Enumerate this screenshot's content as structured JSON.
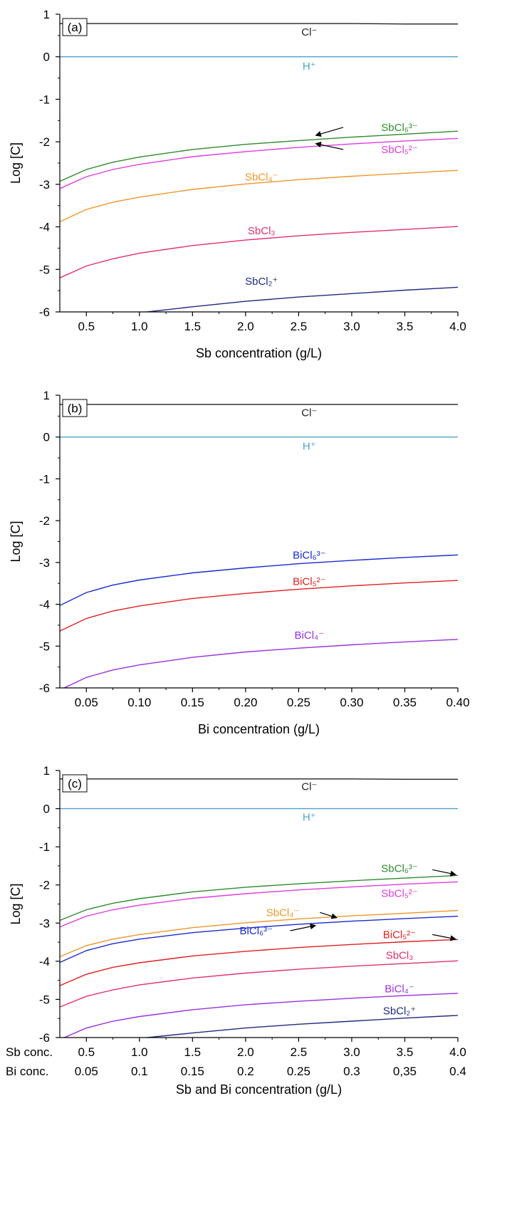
{
  "chart_data": [
    {
      "panel_label": "(a)",
      "type": "line",
      "xlabel": "Sb concentration (g/L)",
      "ylabel": "Log [C]",
      "xlim": [
        0.25,
        4.0
      ],
      "ylim": [
        -6,
        1
      ],
      "xticks": [
        "0.5",
        "1.0",
        "1.5",
        "2.0",
        "2.5",
        "3.0",
        "3.5",
        "4.0"
      ],
      "xtick_values": [
        0.5,
        1.0,
        1.5,
        2.0,
        2.5,
        3.0,
        3.5,
        4.0
      ],
      "yticks": [
        "1",
        "0",
        "-1",
        "-2",
        "-3",
        "-4",
        "-5",
        "-6"
      ],
      "ytick_values": [
        1,
        0,
        -1,
        -2,
        -3,
        -4,
        -5,
        -6
      ],
      "x": [
        0.25,
        0.5,
        0.75,
        1.0,
        1.5,
        2.0,
        2.5,
        3.0,
        3.5,
        4.0
      ],
      "series": [
        {
          "name": "Cl⁻",
          "color": "#222222",
          "values": [
            0.78,
            0.78,
            0.78,
            0.78,
            0.78,
            0.78,
            0.78,
            0.78,
            0.77,
            0.77
          ]
        },
        {
          "name": "H⁺",
          "color": "#4aa3c9",
          "values": [
            0.0,
            0.0,
            0.0,
            0.0,
            0.0,
            0.0,
            0.0,
            0.0,
            0.0,
            0.0
          ]
        },
        {
          "name": "SbCl₆³⁻",
          "color": "#2e8b2e",
          "values": [
            -2.93,
            -2.65,
            -2.48,
            -2.36,
            -2.18,
            -2.06,
            -1.97,
            -1.89,
            -1.82,
            -1.75
          ]
        },
        {
          "name": "SbCl₅²⁻",
          "color": "#e03ce0",
          "values": [
            -3.1,
            -2.82,
            -2.65,
            -2.53,
            -2.35,
            -2.23,
            -2.13,
            -2.05,
            -1.98,
            -1.92
          ]
        },
        {
          "name": "SbCl₄⁻",
          "color": "#f0962a",
          "values": [
            -3.88,
            -3.59,
            -3.42,
            -3.3,
            -3.12,
            -2.99,
            -2.89,
            -2.81,
            -2.74,
            -2.67
          ]
        },
        {
          "name": "SbCl₃",
          "color": "#e0306e",
          "values": [
            -5.2,
            -4.92,
            -4.75,
            -4.62,
            -4.44,
            -4.31,
            -4.21,
            -4.13,
            -4.06,
            -3.99
          ]
        },
        {
          "name": "SbCl₂⁺",
          "color": "#1f2a80",
          "values": [
            -6.5,
            -6.25,
            -6.1,
            -6.02,
            -5.88,
            -5.75,
            -5.65,
            -5.57,
            -5.49,
            -5.42
          ]
        }
      ],
      "labels": [
        {
          "text": "Cl⁻",
          "x": 2.6,
          "y": 0.58,
          "color": "#222222"
        },
        {
          "text": "H⁺",
          "x": 2.6,
          "y": -0.22,
          "color": "#4aa3c9"
        },
        {
          "text": "SbCl₆³⁻",
          "x": 3.45,
          "y": -1.66,
          "color": "#2e8b2e"
        },
        {
          "text": "SbCl₅²⁻",
          "x": 3.45,
          "y": -2.18,
          "color": "#e03ce0"
        },
        {
          "text": "SbCl₄⁻",
          "x": 2.15,
          "y": -2.83,
          "color": "#f0962a"
        },
        {
          "text": "SbCl₃",
          "x": 2.15,
          "y": -4.09,
          "color": "#e0306e"
        },
        {
          "text": "SbCl₂⁺",
          "x": 2.15,
          "y": -5.28,
          "color": "#1f2a80"
        }
      ],
      "arrows": [
        {
          "from": [
            2.92,
            -1.66
          ],
          "to": [
            2.66,
            -1.85
          ]
        },
        {
          "from": [
            2.92,
            -2.18
          ],
          "to": [
            2.66,
            -2.04
          ]
        }
      ]
    },
    {
      "panel_label": "(b)",
      "type": "line",
      "xlabel": "Bi concentration (g/L)",
      "ylabel": "Log [C]",
      "xlim": [
        0.025,
        0.4
      ],
      "ylim": [
        -6,
        1
      ],
      "xticks": [
        "0.05",
        "0.10",
        "0.15",
        "0.20",
        "0.25",
        "0.30",
        "0.35",
        "0.40"
      ],
      "xtick_values": [
        0.05,
        0.1,
        0.15,
        0.2,
        0.25,
        0.3,
        0.35,
        0.4
      ],
      "yticks": [
        "1",
        "0",
        "-1",
        "-2",
        "-3",
        "-4",
        "-5",
        "-6"
      ],
      "ytick_values": [
        1,
        0,
        -1,
        -2,
        -3,
        -4,
        -5,
        -6
      ],
      "x": [
        0.025,
        0.05,
        0.075,
        0.1,
        0.15,
        0.2,
        0.25,
        0.3,
        0.35,
        0.4
      ],
      "series": [
        {
          "name": "Cl⁻",
          "color": "#222222",
          "values": [
            0.78,
            0.78,
            0.78,
            0.78,
            0.78,
            0.78,
            0.78,
            0.78,
            0.78,
            0.78
          ]
        },
        {
          "name": "H⁺",
          "color": "#4aa3c9",
          "values": [
            0.0,
            0.0,
            0.0,
            0.0,
            0.0,
            0.0,
            0.0,
            0.0,
            0.0,
            0.0
          ]
        },
        {
          "name": "BiCl₆³⁻",
          "color": "#1a2ad0",
          "values": [
            -4.03,
            -3.72,
            -3.54,
            -3.42,
            -3.25,
            -3.13,
            -3.03,
            -2.95,
            -2.88,
            -2.82
          ]
        },
        {
          "name": "BiCl₅²⁻",
          "color": "#e02020",
          "values": [
            -4.64,
            -4.34,
            -4.16,
            -4.04,
            -3.86,
            -3.74,
            -3.64,
            -3.56,
            -3.49,
            -3.43
          ]
        },
        {
          "name": "BiCl₄⁻",
          "color": "#9b30e0",
          "values": [
            -6.05,
            -5.75,
            -5.57,
            -5.45,
            -5.27,
            -5.14,
            -5.05,
            -4.97,
            -4.9,
            -4.84
          ]
        }
      ],
      "labels": [
        {
          "text": "Cl⁻",
          "x": 0.26,
          "y": 0.58,
          "color": "#222222"
        },
        {
          "text": "H⁺",
          "x": 0.26,
          "y": -0.22,
          "color": "#4aa3c9"
        },
        {
          "text": "BiCl₆³⁻",
          "x": 0.26,
          "y": -2.82,
          "color": "#1a2ad0"
        },
        {
          "text": "BiCl₅²⁻",
          "x": 0.26,
          "y": -3.45,
          "color": "#e02020"
        },
        {
          "text": "BiCl₄⁻",
          "x": 0.26,
          "y": -4.74,
          "color": "#9b30e0"
        }
      ],
      "arrows": []
    },
    {
      "panel_label": "(c)",
      "type": "line",
      "xlabel": "Sb and Bi concentration (g/L)",
      "ylabel": "Log [C]",
      "xlim": [
        0.25,
        4.0
      ],
      "ylim": [
        -6,
        1
      ],
      "x_row_labels": [
        "Sb conc.",
        "Bi conc."
      ],
      "xticks": [
        "0.5",
        "1.0",
        "1.5",
        "2.0",
        "2.5",
        "3.0",
        "3.5",
        "4.0"
      ],
      "xticks2": [
        "0.05",
        "0.1",
        "0.15",
        "0.2",
        "0.25",
        "0.3",
        "0,35",
        "0.4"
      ],
      "xtick_values": [
        0.5,
        1.0,
        1.5,
        2.0,
        2.5,
        3.0,
        3.5,
        4.0
      ],
      "yticks": [
        "1",
        "0",
        "-1",
        "-2",
        "-3",
        "-4",
        "-5",
        "-6"
      ],
      "ytick_values": [
        1,
        0,
        -1,
        -2,
        -3,
        -4,
        -5,
        -6
      ],
      "x": [
        0.25,
        0.5,
        0.75,
        1.0,
        1.5,
        2.0,
        2.5,
        3.0,
        3.5,
        4.0
      ],
      "series": [
        {
          "name": "Cl⁻",
          "color": "#222222",
          "values": [
            0.78,
            0.78,
            0.78,
            0.78,
            0.78,
            0.78,
            0.78,
            0.78,
            0.77,
            0.77
          ]
        },
        {
          "name": "H⁺",
          "color": "#4aa3c9",
          "values": [
            0.0,
            0.0,
            0.0,
            0.0,
            0.0,
            0.0,
            0.0,
            0.0,
            0.0,
            0.0
          ]
        },
        {
          "name": "SbCl₆³⁻",
          "color": "#2e8b2e",
          "values": [
            -2.93,
            -2.65,
            -2.48,
            -2.36,
            -2.18,
            -2.06,
            -1.97,
            -1.89,
            -1.82,
            -1.75
          ]
        },
        {
          "name": "SbCl₅²⁻",
          "color": "#e03ce0",
          "values": [
            -3.1,
            -2.82,
            -2.65,
            -2.53,
            -2.35,
            -2.23,
            -2.13,
            -2.05,
            -1.98,
            -1.92
          ]
        },
        {
          "name": "SbCl₄⁻",
          "color": "#f0962a",
          "values": [
            -3.88,
            -3.59,
            -3.42,
            -3.3,
            -3.12,
            -2.99,
            -2.89,
            -2.81,
            -2.74,
            -2.67
          ]
        },
        {
          "name": "BiCl₆³⁻",
          "color": "#1a2ad0",
          "values": [
            -4.03,
            -3.72,
            -3.54,
            -3.42,
            -3.25,
            -3.13,
            -3.03,
            -2.95,
            -2.88,
            -2.82
          ]
        },
        {
          "name": "BiCl₅²⁻",
          "color": "#e02020",
          "values": [
            -4.64,
            -4.34,
            -4.16,
            -4.04,
            -3.86,
            -3.74,
            -3.64,
            -3.56,
            -3.49,
            -3.43
          ]
        },
        {
          "name": "SbCl₃",
          "color": "#e0306e",
          "values": [
            -5.2,
            -4.92,
            -4.75,
            -4.62,
            -4.44,
            -4.31,
            -4.21,
            -4.13,
            -4.06,
            -3.99
          ]
        },
        {
          "name": "BiCl₄⁻",
          "color": "#9b30e0",
          "values": [
            -6.05,
            -5.75,
            -5.57,
            -5.45,
            -5.27,
            -5.14,
            -5.05,
            -4.97,
            -4.9,
            -4.84
          ]
        },
        {
          "name": "SbCl₂⁺",
          "color": "#1f2a80",
          "values": [
            -6.5,
            -6.25,
            -6.1,
            -6.02,
            -5.88,
            -5.75,
            -5.65,
            -5.57,
            -5.49,
            -5.42
          ]
        }
      ],
      "labels": [
        {
          "text": "Cl⁻",
          "x": 2.6,
          "y": 0.58,
          "color": "#222222"
        },
        {
          "text": "H⁺",
          "x": 2.6,
          "y": -0.22,
          "color": "#4aa3c9"
        },
        {
          "text": "SbCl₆³⁻",
          "x": 3.45,
          "y": -1.57,
          "color": "#2e8b2e"
        },
        {
          "text": "SbCl₅²⁻",
          "x": 3.45,
          "y": -2.22,
          "color": "#e03ce0"
        },
        {
          "text": "SbCl₄⁻",
          "x": 2.35,
          "y": -2.72,
          "color": "#f0962a"
        },
        {
          "text": "BiCl₆³⁻",
          "x": 2.1,
          "y": -3.2,
          "color": "#1a2ad0"
        },
        {
          "text": "BiCl₅²⁻",
          "x": 3.45,
          "y": -3.3,
          "color": "#e02020"
        },
        {
          "text": "SbCl₃",
          "x": 3.45,
          "y": -3.84,
          "color": "#e0306e"
        },
        {
          "text": "BiCl₄⁻",
          "x": 3.45,
          "y": -4.72,
          "color": "#9b30e0"
        },
        {
          "text": "SbCl₂⁺",
          "x": 3.45,
          "y": -5.3,
          "color": "#1f2a80"
        }
      ],
      "arrows": [
        {
          "from": [
            3.76,
            -1.6
          ],
          "to": [
            3.98,
            -1.73
          ]
        },
        {
          "from": [
            2.7,
            -2.72
          ],
          "to": [
            2.86,
            -2.86
          ]
        },
        {
          "from": [
            2.42,
            -3.2
          ],
          "to": [
            2.66,
            -3.06
          ]
        },
        {
          "from": [
            3.76,
            -3.3
          ],
          "to": [
            3.98,
            -3.42
          ]
        }
      ]
    }
  ]
}
